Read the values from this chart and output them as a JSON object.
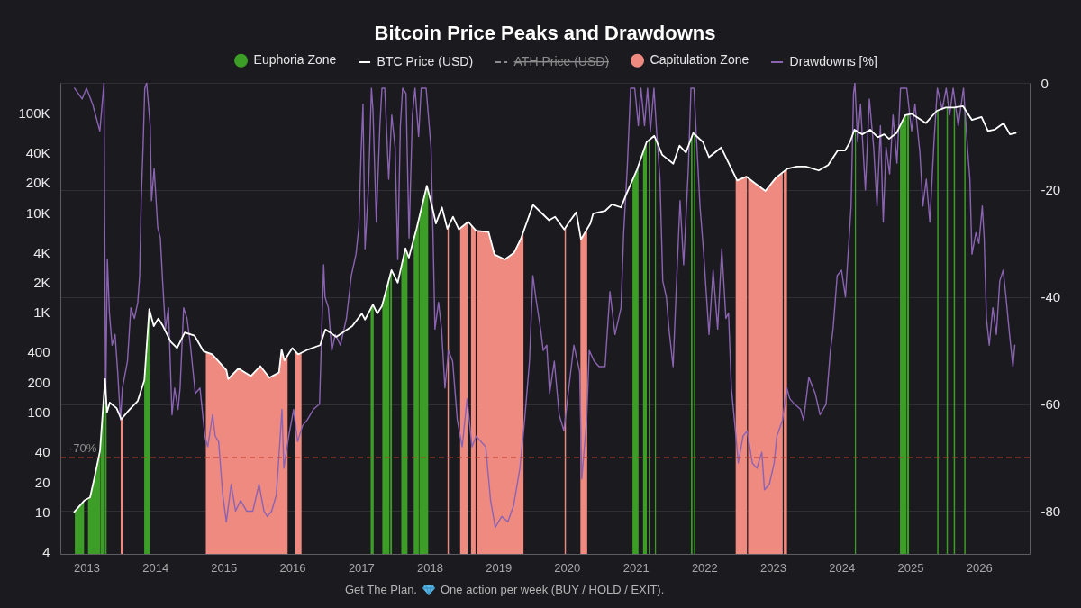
{
  "chart_data": {
    "type": "line",
    "title": "Bitcoin Price Peaks and Drawdowns",
    "xlim": [
      "2012-08-15",
      "2026-09-28"
    ],
    "xticks": [
      "2013",
      "2014",
      "2015",
      "2016",
      "2017",
      "2018",
      "2019",
      "2020",
      "2021",
      "2022",
      "2023",
      "2024",
      "2025",
      "2026"
    ],
    "ylim": [
      3.8,
      200000
    ],
    "yticks": [
      4,
      10,
      20,
      40,
      100,
      200,
      400,
      {
        "value": 1000,
        "label": "1K"
      },
      {
        "value": 2000,
        "label": "2K"
      },
      {
        "value": 4000,
        "label": "4K"
      },
      {
        "value": 10000,
        "label": "10K"
      },
      {
        "value": 20000,
        "label": "20K"
      },
      {
        "value": 40000,
        "label": "40K"
      },
      {
        "value": 100000,
        "label": "100K"
      }
    ],
    "log": "y",
    "y2lim": [
      -88,
      0
    ],
    "y2ticks": [
      0,
      -20,
      -40,
      -60,
      -80
    ],
    "grid": "y2",
    "legend": "top",
    "ref_lines": [
      {
        "axis": "y2",
        "value": -70,
        "label": "-70%",
        "color": "#c0392b",
        "line_style": "dashed"
      }
    ],
    "annotations": [
      "Get The Plan.",
      "One action per week (BUY / HOLD / EXIT)."
    ],
    "series": [
      {
        "name": "Euphoria Zone",
        "type": "area",
        "color": "#3c9e26",
        "x": [
          "2012-10-31",
          "2012-12-19",
          "2012-12-28",
          "2013-01-09",
          "2013-01-20",
          "2013-02-10",
          "2013-03-14",
          "2013-03-16",
          "2013-03-17",
          "2013-03-18",
          "2013-04-05",
          "2013-04-07",
          "2013-04-09",
          "2013-04-10",
          "2013-04-18",
          "2013-08-01",
          "2013-11-04",
          "2013-12-01",
          "2013-12-04",
          "2015-06-01",
          "2017-02-21",
          "2017-03-05",
          "2017-03-09",
          "2017-04-01",
          "2017-04-24",
          "2017-06-01",
          "2017-06-03",
          "2017-06-05",
          "2017-06-12",
          "2017-06-14",
          "2017-07-01",
          "2017-08-03",
          "2017-08-25",
          "2017-09-05",
          "2017-09-20",
          "2017-10-08",
          "2017-10-22",
          "2017-11-04",
          "2017-11-05",
          "2017-11-07",
          "2017-12-17",
          "2017-12-24",
          "2019-06-01",
          "2020-12-15",
          "2021-01-08",
          "2021-01-16",
          "2021-01-25",
          "2021-02-09",
          "2021-02-28",
          "2021-03-01",
          "2021-03-05",
          "2021-03-11",
          "2021-03-17",
          "2021-04-01",
          "2021-04-13",
          "2021-04-19",
          "2021-07-01",
          "2021-10-22",
          "2021-10-30",
          "2021-11-03",
          "2021-11-07",
          "2021-11-14",
          "2023-01-01",
          "2024-03-12",
          "2024-03-18",
          "2024-07-01",
          "2024-11-07",
          "2024-12-05",
          "2024-12-11",
          "2024-12-12",
          "2024-12-14",
          "2024-12-25",
          "2025-03-01",
          "2025-05-24",
          "2025-05-31",
          "2025-06-15",
          "2025-07-13",
          "2025-07-20",
          "2025-08-01",
          "2025-08-20",
          "2025-08-27",
          "2025-09-15",
          "2025-10-15",
          "2025-10-22"
        ],
        "values": [
          10,
          13,
          null,
          13,
          14,
          21,
          41,
          44,
          null,
          52,
          158,
          null,
          205,
          215,
          115,
          null,
          205,
          1080,
          1030,
          null,
          1100,
          1200,
          1150,
          null,
          1200,
          2200,
          null,
          2400,
          2660,
          2600,
          null,
          2900,
          4400,
          3900,
          null,
          5400,
          6800,
          8600,
          null,
          9100,
          18600,
          16500,
          null,
          21000,
          27000,
          30000,
          null,
          40000,
          51000,
          51000,
          null,
          52000,
          53000,
          null,
          58000,
          56000,
          null,
          55000,
          60000,
          null,
          62000,
          61000,
          null,
          68000,
          67000,
          null,
          74000,
          95000,
          95000,
          null,
          96000,
          97000,
          null,
          105000,
          107000,
          null,
          113000,
          113000,
          null,
          113000,
          114000,
          null,
          116000,
          114000
        ]
      },
      {
        "name": "BTC Price (USD)",
        "color": "#ffffff",
        "x": [
          "2012-10-28",
          "2012-12-20",
          "2013-01-20",
          "2013-02-10",
          "2013-03-14",
          "2013-04-10",
          "2013-04-20",
          "2013-05-05",
          "2013-06-10",
          "2013-07-05",
          "2013-08-15",
          "2013-10-01",
          "2013-11-05",
          "2013-12-01",
          "2013-12-25",
          "2014-01-18",
          "2014-02-12",
          "2014-03-25",
          "2014-04-28",
          "2014-06-08",
          "2014-07-30",
          "2014-09-15",
          "2014-11-01",
          "2015-01-15",
          "2015-01-25",
          "2015-03-20",
          "2015-05-25",
          "2015-07-15",
          "2015-09-01",
          "2015-10-22",
          "2015-11-05",
          "2015-11-20",
          "2016-01-01",
          "2016-02-01",
          "2016-03-25",
          "2016-05-28",
          "2016-06-25",
          "2016-07-20",
          "2016-08-22",
          "2016-11-15",
          "2017-01-05",
          "2017-01-22",
          "2017-03-05",
          "2017-03-28",
          "2017-04-22",
          "2017-06-12",
          "2017-07-15",
          "2017-08-25",
          "2017-09-12",
          "2017-10-22",
          "2017-12-17",
          "2018-01-15",
          "2018-02-03",
          "2018-03-07",
          "2018-04-05",
          "2018-05-05",
          "2018-06-05",
          "2018-07-25",
          "2018-09-05",
          "2018-11-10",
          "2018-12-12",
          "2019-02-05",
          "2019-03-25",
          "2019-04-30",
          "2019-07-05",
          "2019-08-08",
          "2019-09-28",
          "2019-10-30",
          "2019-12-18",
          "2020-01-08",
          "2020-02-20",
          "2020-03-16",
          "2020-05-05",
          "2020-05-20",
          "2020-07-22",
          "2020-08-28",
          "2020-10-15",
          "2020-11-10",
          "2021-01-08",
          "2021-02-28",
          "2021-04-10",
          "2021-05-22",
          "2021-07-20",
          "2021-08-22",
          "2021-09-25",
          "2021-11-03",
          "2021-12-25",
          "2022-01-26",
          "2022-04-01",
          "2022-05-12",
          "2022-06-25",
          "2022-08-12",
          "2022-10-01",
          "2022-11-22",
          "2023-01-18",
          "2023-03-18",
          "2023-05-08",
          "2023-06-25",
          "2023-09-02",
          "2023-10-22",
          "2023-12-12",
          "2024-01-20",
          "2024-02-15",
          "2024-03-10",
          "2024-04-20",
          "2024-06-01",
          "2024-07-12",
          "2024-08-15",
          "2024-09-10",
          "2024-10-20",
          "2024-12-05",
          "2025-01-08",
          "2025-02-28",
          "2025-03-25",
          "2025-05-22",
          "2025-07-08",
          "2025-08-22",
          "2025-10-08",
          "2025-11-25",
          "2026-01-15",
          "2026-02-18",
          "2026-03-25",
          "2026-05-12",
          "2026-06-15",
          "2026-07-16"
        ],
        "values": [
          10,
          13,
          14,
          21,
          41,
          215,
          100,
          125,
          110,
          85,
          105,
          130,
          210,
          1080,
          730,
          870,
          730,
          510,
          440,
          630,
          585,
          410,
          380,
          265,
          215,
          275,
          230,
          290,
          222,
          250,
          425,
          330,
          440,
          380,
          425,
          470,
          675,
          630,
          570,
          730,
          975,
          850,
          1200,
          975,
          1160,
          2660,
          1990,
          4400,
          3550,
          6800,
          18600,
          11300,
          7800,
          11300,
          6900,
          9100,
          6800,
          8100,
          6600,
          6400,
          3800,
          3400,
          3950,
          5400,
          12000,
          10400,
          8400,
          9100,
          6800,
          7800,
          10100,
          5400,
          7800,
          9800,
          10400,
          12100,
          11300,
          15000,
          27000,
          51000,
          59000,
          38000,
          31000,
          47000,
          40000,
          63000,
          51000,
          36000,
          45000,
          31000,
          21000,
          23000,
          19500,
          16500,
          22500,
          27500,
          29000,
          29000,
          26500,
          30000,
          42000,
          42000,
          51000,
          68000,
          61000,
          68000,
          57000,
          61000,
          55000,
          63000,
          95000,
          98000,
          85000,
          79000,
          105000,
          113000,
          113000,
          117000,
          85000,
          91000,
          66000,
          68000,
          79000,
          61000,
          63000
        ]
      },
      {
        "name": "ATH Price (USD)",
        "color": "#8c8c8c",
        "line_style": "dashed"
      },
      {
        "name": "Capitulation Zone",
        "type": "area",
        "color": "#ef8a80",
        "x": [
          "2013-07-02",
          "2013-07-05",
          "2013-07-14",
          "2014-01-01",
          "2014-09-28",
          "2014-11-01",
          "2015-01-15",
          "2015-01-25",
          "2015-03-20",
          "2015-05-25",
          "2015-07-15",
          "2015-09-01",
          "2015-10-22",
          "2015-11-05",
          "2015-11-20",
          "2015-12-07",
          "2015-12-20",
          "2016-01-17",
          "2016-02-01",
          "2016-02-19",
          "2017-01-01",
          "2018-04-06",
          "2018-04-13",
          "2018-05-01",
          "2018-06-12",
          "2018-07-22",
          "2018-08-01",
          "2018-08-09",
          "2018-09-02",
          "2018-09-05",
          "2018-09-08",
          "2018-11-10",
          "2018-12-12",
          "2019-02-05",
          "2019-03-25",
          "2019-04-30",
          "2019-05-15",
          "2019-09-01",
          "2019-12-20",
          "2019-12-27",
          "2020-02-01",
          "2020-03-13",
          "2020-03-16",
          "2020-04-18",
          "2021-01-01",
          "2022-06-17",
          "2022-06-25",
          "2022-08-12",
          "2022-08-16",
          "2022-08-19",
          "2022-08-22",
          "2022-10-01",
          "2022-11-22",
          "2023-01-18",
          "2023-02-22",
          "2023-02-25",
          "2023-02-28",
          "2023-03-17"
        ],
        "values": [
          88,
          85,
          89,
          null,
          400,
          380,
          265,
          215,
          275,
          230,
          290,
          222,
          250,
          425,
          330,
          370,
          null,
          410,
          380,
          395,
          null,
          7000,
          7400,
          null,
          7000,
          8000,
          null,
          7600,
          6700,
          null,
          6600,
          6400,
          3800,
          3400,
          3950,
          5400,
          6500,
          null,
          6900,
          7200,
          null,
          5800,
          5400,
          6900,
          null,
          22000,
          21000,
          23000,
          23000,
          null,
          22700,
          19500,
          16500,
          22500,
          25000,
          null,
          26000,
          27400
        ]
      },
      {
        "name": "Drawdowns [%]",
        "color": "#8a63b2",
        "axis": "y2",
        "x": [
          "2012-10-29",
          "2012-12-09",
          "2013-01-01",
          "2013-02-03",
          "2013-03-13",
          "2013-04-04",
          "2013-04-13",
          "2013-04-22",
          "2013-05-03",
          "2013-05-17",
          "2013-06-02",
          "2013-06-16",
          "2013-07-01",
          "2013-07-11",
          "2013-08-07",
          "2013-08-25",
          "2013-09-13",
          "2013-10-01",
          "2013-10-11",
          "2013-10-19",
          "2013-10-29",
          "2013-11-07",
          "2013-11-17",
          "2013-12-06",
          "2013-12-13",
          "2013-12-27",
          "2014-01-15",
          "2014-01-29",
          "2014-02-10",
          "2014-02-25",
          "2014-03-13",
          "2014-04-01",
          "2014-04-15",
          "2014-05-03",
          "2014-05-14",
          "2014-06-02",
          "2014-06-20",
          "2014-07-08",
          "2014-08-03",
          "2014-08-28",
          "2014-09-23",
          "2014-10-08",
          "2014-11-03",
          "2014-11-17",
          "2014-12-05",
          "2014-12-27",
          "2015-01-15",
          "2015-02-10",
          "2015-03-05",
          "2015-04-01",
          "2015-05-03",
          "2015-06-05",
          "2015-07-08",
          "2015-08-03",
          "2015-08-21",
          "2015-09-13",
          "2015-10-08",
          "2015-10-29",
          "2015-11-07",
          "2015-11-17",
          "2015-12-13",
          "2016-01-08",
          "2016-01-29",
          "2016-02-25",
          "2016-03-20",
          "2016-04-22",
          "2016-05-25",
          "2016-06-16",
          "2016-06-23",
          "2016-07-11",
          "2016-07-29",
          "2016-08-17",
          "2016-09-13",
          "2016-10-15",
          "2016-11-10",
          "2016-12-05",
          "2016-12-20",
          "2017-01-01",
          "2017-01-11",
          "2017-01-22",
          "2017-02-10",
          "2017-02-25",
          "2017-03-05",
          "2017-03-23",
          "2017-04-11",
          "2017-04-22",
          "2017-05-07",
          "2017-05-28",
          "2017-06-13",
          "2017-07-01",
          "2017-07-15",
          "2017-07-29",
          "2017-08-10",
          "2017-08-28",
          "2017-09-13",
          "2017-10-01",
          "2017-10-15",
          "2017-11-03",
          "2017-11-17",
          "2017-12-13",
          "2018-01-08",
          "2018-01-19",
          "2018-01-29",
          "2018-02-17",
          "2018-03-05",
          "2018-03-23",
          "2018-04-11",
          "2018-05-03",
          "2018-05-28",
          "2018-06-23",
          "2018-07-19",
          "2018-08-14",
          "2018-09-05",
          "2018-10-26",
          "2018-11-21",
          "2018-12-16",
          "2019-01-19",
          "2019-02-21",
          "2019-03-23",
          "2019-04-26",
          "2019-05-21",
          "2019-06-16",
          "2019-07-04",
          "2019-07-19",
          "2019-08-14",
          "2019-08-28",
          "2019-09-16",
          "2019-10-01",
          "2019-10-26",
          "2019-11-21",
          "2019-12-16",
          "2020-01-11",
          "2020-02-07",
          "2020-03-09",
          "2020-03-20",
          "2020-04-15",
          "2020-04-29",
          "2020-05-25",
          "2020-06-20",
          "2020-07-22",
          "2020-08-17",
          "2020-09-13",
          "2020-10-15",
          "2020-10-29",
          "2020-11-17",
          "2020-12-05",
          "2020-12-27",
          "2021-01-15",
          "2021-01-29",
          "2021-02-17",
          "2021-03-05",
          "2021-03-20",
          "2021-04-08",
          "2021-04-22",
          "2021-05-10",
          "2021-05-25",
          "2021-06-13",
          "2021-06-27",
          "2021-07-19",
          "2021-08-03",
          "2021-08-25",
          "2021-09-13",
          "2021-10-08",
          "2021-10-22",
          "2021-11-07",
          "2021-11-17",
          "2021-12-09",
          "2021-12-27",
          "2022-01-26",
          "2022-02-17",
          "2022-03-13",
          "2022-04-04",
          "2022-04-26",
          "2022-05-10",
          "2022-05-25",
          "2022-06-13",
          "2022-07-01",
          "2022-07-26",
          "2022-08-17",
          "2022-09-13",
          "2022-10-08",
          "2022-11-03",
          "2022-11-17",
          "2022-12-13",
          "2023-01-08",
          "2023-01-22",
          "2023-02-21",
          "2023-03-16",
          "2023-04-01",
          "2023-04-26",
          "2023-05-28",
          "2023-06-13",
          "2023-07-11",
          "2023-08-14",
          "2023-09-09",
          "2023-10-11",
          "2023-11-03",
          "2023-11-17",
          "2023-12-09",
          "2024-01-01",
          "2024-01-22",
          "2024-02-21",
          "2024-03-05",
          "2024-03-12",
          "2024-03-27",
          "2024-04-11",
          "2024-05-07",
          "2024-05-28",
          "2024-06-20",
          "2024-07-08",
          "2024-07-26",
          "2024-08-10",
          "2024-08-25",
          "2024-09-13",
          "2024-10-01",
          "2024-10-22",
          "2024-11-10",
          "2024-12-13",
          "2025-01-08",
          "2025-01-26",
          "2025-02-21",
          "2025-03-09",
          "2025-03-27",
          "2025-04-15",
          "2025-05-07",
          "2025-05-25",
          "2025-06-20",
          "2025-07-11",
          "2025-07-29",
          "2025-08-17",
          "2025-09-13",
          "2025-10-11",
          "2025-11-03",
          "2025-11-14",
          "2025-11-25",
          "2025-12-16",
          "2026-01-01",
          "2026-01-19",
          "2026-01-29",
          "2026-02-10",
          "2026-02-25",
          "2026-03-16",
          "2026-04-04",
          "2026-04-22",
          "2026-05-10",
          "2026-05-25",
          "2026-06-13",
          "2026-07-01",
          "2026-07-11"
        ],
        "values": [
          -1,
          -3,
          -1,
          -4,
          -9,
          0,
          -60,
          -33,
          -43,
          -49,
          -47,
          -54,
          -63,
          -57,
          -52,
          -42,
          -44,
          -41,
          -36,
          -22,
          -12,
          -1,
          0,
          -8,
          -22,
          -16,
          -27,
          -29,
          -37,
          -46,
          -42,
          -62,
          -57,
          -61,
          -57,
          -42,
          -44,
          -49,
          -58,
          -57,
          -66,
          -68,
          -62,
          -66,
          -67,
          -77,
          -82,
          -75,
          -80,
          -78,
          -80,
          -80,
          -75,
          -80,
          -81,
          -80,
          -77,
          -66,
          -61,
          -72,
          -66,
          -61,
          -67,
          -64,
          -63,
          -61,
          -60,
          -34,
          -40,
          -42,
          -50,
          -47,
          -49,
          -44,
          -36,
          -32,
          -27,
          -13,
          -4,
          -31,
          -19,
          -1,
          -5,
          -26,
          -8,
          -1,
          -1,
          -18,
          -6,
          -12,
          -33,
          -8,
          -1,
          -2,
          -29,
          -6,
          -1,
          -10,
          -1,
          -1,
          -12,
          -29,
          -46,
          -41,
          -46,
          -57,
          -50,
          -52,
          -63,
          -68,
          -59,
          -68,
          -66,
          -68,
          -78,
          -83,
          -81,
          -82,
          -79,
          -72,
          -63,
          -52,
          -36,
          -40,
          -46,
          -50,
          -49,
          -58,
          -52,
          -62,
          -65,
          -57,
          -49,
          -54,
          -74,
          -63,
          -50,
          -52,
          -53,
          -53,
          -39,
          -47,
          -42,
          -28,
          -16,
          -1,
          -1,
          -8,
          -1,
          -8,
          -1,
          -9,
          -1,
          -9,
          -18,
          -37,
          -40,
          -46,
          -53,
          -40,
          -22,
          -34,
          -16,
          -1,
          -1,
          -8,
          -23,
          -31,
          -47,
          -35,
          -46,
          -31,
          -44,
          -43,
          -57,
          -64,
          -71,
          -66,
          -65,
          -71,
          -72,
          -69,
          -76,
          -75,
          -71,
          -66,
          -63,
          -57,
          -59,
          -60,
          -61,
          -63,
          -55,
          -58,
          -62,
          -60,
          -50,
          -46,
          -36,
          -35,
          -40,
          -23,
          -2,
          0,
          -11,
          -4,
          -20,
          -3,
          -12,
          -23,
          -8,
          -26,
          -12,
          -17,
          -6,
          -15,
          -1,
          -1,
          -9,
          -4,
          -13,
          -23,
          -18,
          -26,
          -11,
          -1,
          -5,
          -1,
          -6,
          -1,
          -8,
          -1,
          -13,
          -18,
          -32,
          -28,
          -30,
          -23,
          -29,
          -44,
          -49,
          -42,
          -47,
          -37,
          -35,
          -40,
          -47,
          -53,
          -49
        ]
      }
    ]
  }
}
